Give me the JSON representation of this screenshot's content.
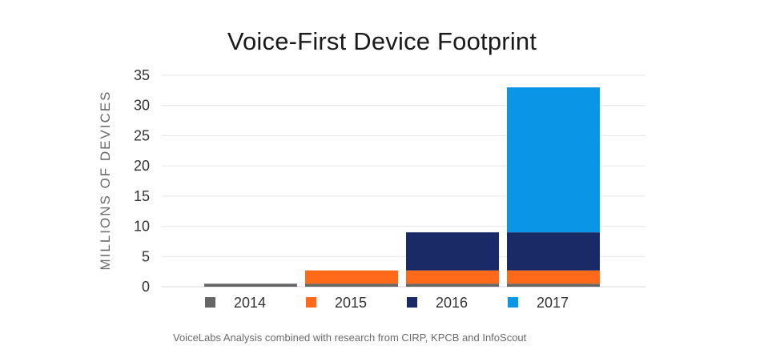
{
  "chart_data": {
    "type": "bar",
    "stacked": true,
    "title": "Voice-First Device Footprint",
    "ylabel": "MILLIONS OF DEVICES",
    "xlabel": "",
    "ylim": [
      0,
      35
    ],
    "yticks": [
      0,
      5,
      10,
      15,
      20,
      25,
      30,
      35
    ],
    "grid": true,
    "legend_position": "bottom",
    "categories": [
      "2014",
      "2015",
      "2016",
      "2017"
    ],
    "series": [
      {
        "name": "2014",
        "color": "#666666",
        "values": [
          0.5,
          0.5,
          0.5,
          0.5
        ]
      },
      {
        "name": "2015",
        "color": "#ff6a1a",
        "values": [
          0,
          2.2,
          2.2,
          2.2
        ]
      },
      {
        "name": "2016",
        "color": "#1a2a66",
        "values": [
          0,
          0,
          6.3,
          6.3
        ]
      },
      {
        "name": "2017",
        "color": "#0a96e6",
        "values": [
          0,
          0,
          0,
          24
        ]
      }
    ]
  },
  "source_note": "VoiceLabs Analysis combined with research from CIRP, KPCB and InfoScout"
}
